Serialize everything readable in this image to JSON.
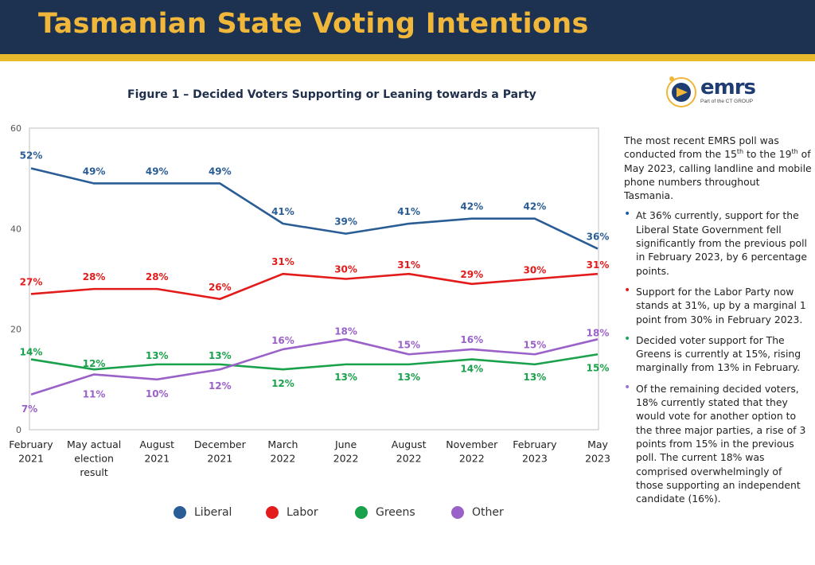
{
  "page_title": "Tasmanian State Voting Intentions",
  "logo": {
    "name": "emrs",
    "tagline": "Part of the CT GROUP"
  },
  "sidebar": {
    "intro_parts": [
      "The most recent EMRS poll was conducted from the 15",
      "th",
      " to the 19",
      "th",
      " of May 2023, calling landline and mobile phone numbers throughout Tasmania."
    ],
    "bullets": [
      {
        "color": "#1f5aa0",
        "text": "At 36% currently, support for the Liberal State Government fell significantly from the previous poll in February 2023, by 6 percentage points."
      },
      {
        "color": "#e11e1e",
        "text": "Support for the Labor Party now stands at 31%, up by a marginal 1 point from 30% in February 2023."
      },
      {
        "color": "#1aaa55",
        "text": "Decided voter support for The Greens is currently at 15%, rising marginally from 13% in February."
      },
      {
        "color": "#a070d0",
        "text": "Of the remaining decided voters, 18% currently stated that they would vote for another option to the three major parties, a  rise of 3 points from 15% in the previous poll. The current 18% was comprised overwhelmingly of those supporting an independent candidate (16%)."
      }
    ]
  },
  "chart_data": {
    "type": "line",
    "title": "Figure 1 – Decided Voters Supporting or Leaning towards a Party",
    "xlabel": "",
    "ylabel": "",
    "ylim": [
      0,
      60
    ],
    "yticks": [
      0,
      20,
      40,
      60
    ],
    "grid": false,
    "legend_position": "bottom",
    "categories": [
      [
        "February",
        "2021"
      ],
      [
        "May actual",
        "election",
        "result"
      ],
      [
        "August",
        "2021"
      ],
      [
        "December",
        "2021"
      ],
      [
        "March",
        "2022"
      ],
      [
        "June",
        "2022"
      ],
      [
        "August",
        "2022"
      ],
      [
        "November",
        "2022"
      ],
      [
        "February",
        "2023"
      ],
      [
        "May",
        "2023"
      ]
    ],
    "series": [
      {
        "name": "Liberal",
        "color": "#2a5d95",
        "values": [
          52,
          49,
          49,
          49,
          41,
          39,
          41,
          42,
          42,
          36
        ],
        "labels": [
          "52%",
          "49%",
          "49%",
          "49%",
          "41%",
          "39%",
          "41%",
          "42%",
          "42%",
          "36%"
        ]
      },
      {
        "name": "Labor",
        "color": "#e31b1b",
        "values": [
          27,
          28,
          28,
          26,
          31,
          30,
          31,
          29,
          30,
          31
        ],
        "labels": [
          "27%",
          "28%",
          "28%",
          "26%",
          "31%",
          "30%",
          "31%",
          "29%",
          "30%",
          "31%"
        ]
      },
      {
        "name": "Greens",
        "color": "#1aa14b",
        "values": [
          14,
          12,
          13,
          13,
          12,
          13,
          13,
          14,
          13,
          15
        ],
        "labels": [
          "14%",
          "12%",
          "13%",
          "13%",
          "12%",
          "13%",
          "13%",
          "14%",
          "13%",
          "15%"
        ]
      },
      {
        "name": "Other",
        "color": "#9a62c9",
        "values": [
          7,
          11,
          10,
          12,
          16,
          18,
          15,
          16,
          15,
          18
        ],
        "labels": [
          "7%",
          "11%",
          "10%",
          "12%",
          "16%",
          "18%",
          "15%",
          "16%",
          "15%",
          "18%"
        ]
      }
    ]
  }
}
